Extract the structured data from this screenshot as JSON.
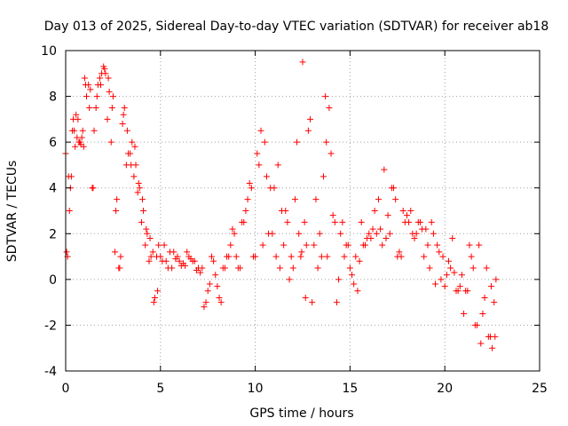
{
  "chart_data": {
    "type": "scatter",
    "title": "Day 013 of 2025, Sidereal Day-to-day VTEC variation (SDTVAR) for receiver ab18",
    "xlabel": "GPS time / hours",
    "ylabel": "SDTVAR / TECUs",
    "xlim": [
      0,
      25
    ],
    "ylim": [
      -4,
      10
    ],
    "xticks": [
      0,
      5,
      10,
      15,
      20,
      25
    ],
    "xtick_labels": [
      "0",
      "5",
      "10",
      "15",
      "20",
      "25"
    ],
    "yticks": [
      -4,
      -2,
      0,
      2,
      4,
      6,
      8,
      10
    ],
    "ytick_labels": [
      "-4",
      "-2",
      "0",
      "2",
      "4",
      "6",
      "8",
      "10"
    ],
    "grid": true,
    "marker": "plus",
    "color": "#ff0000",
    "series": [
      {
        "name": "SDTVAR",
        "x": [
          0.0,
          0.1,
          0.2,
          0.3,
          0.4,
          0.5,
          0.6,
          0.7,
          0.8,
          0.9,
          1.0,
          1.2,
          1.4,
          1.6,
          1.8,
          2.0,
          2.1,
          2.3,
          2.5,
          2.7,
          2.9,
          3.1,
          3.3,
          3.5,
          3.7,
          3.9,
          4.1,
          4.3,
          4.5,
          4.7,
          4.9,
          5.1,
          5.4,
          5.7,
          6.0,
          6.3,
          6.6,
          6.9,
          7.2,
          7.5,
          7.8,
          8.1,
          8.4,
          8.7,
          9.0,
          9.3,
          9.6,
          9.9,
          10.2,
          10.5,
          10.8,
          11.1,
          11.4,
          11.7,
          12.0,
          12.3,
          12.5,
          12.7,
          13.0,
          13.3,
          13.6,
          13.9,
          14.2,
          14.5,
          14.8,
          15.1,
          15.4,
          15.7,
          16.0,
          16.3,
          16.6,
          16.9,
          17.2,
          17.5,
          17.8,
          18.1,
          18.4,
          18.7,
          19.0,
          19.3,
          19.6,
          19.9,
          20.2,
          20.5,
          20.8,
          21.1,
          21.4,
          21.7,
          22.0,
          22.3,
          22.6,
          0.05,
          0.15,
          0.35,
          0.55,
          0.75,
          0.95,
          1.1,
          1.3,
          1.5,
          1.7,
          1.9,
          2.2,
          2.4,
          2.6,
          2.8,
          3.0,
          3.2,
          3.4,
          3.6,
          3.8,
          4.0,
          4.2,
          4.4,
          4.6,
          4.8,
          5.0,
          5.3,
          5.6,
          5.9,
          6.2,
          6.5,
          6.8,
          7.1,
          7.4,
          7.7,
          8.0,
          8.3,
          8.6,
          8.9,
          9.2,
          9.5,
          9.8,
          10.1,
          10.4,
          10.7,
          11.0,
          11.3,
          11.6,
          11.9,
          12.2,
          12.4,
          12.6,
          12.8,
          13.1,
          13.4,
          13.7,
          13.8,
          14.0,
          14.3,
          14.6,
          14.9,
          15.2,
          15.5,
          15.8,
          16.1,
          16.4,
          16.7,
          17.0,
          17.3,
          17.6,
          17.9,
          18.2,
          18.5,
          18.8,
          19.1,
          19.4,
          19.7,
          20.0,
          20.3,
          20.6,
          20.9,
          21.2,
          21.5,
          21.8,
          22.1,
          22.4,
          22.5,
          22.7,
          0.25,
          0.45,
          0.65,
          0.85,
          1.05,
          1.25,
          1.45,
          1.65,
          1.85,
          2.05,
          2.25,
          2.45,
          2.65,
          2.85,
          3.05,
          3.25,
          3.45,
          3.65,
          3.85,
          4.05,
          4.25,
          4.45,
          4.65,
          4.85,
          5.2,
          5.5,
          5.8,
          6.1,
          6.4,
          6.7,
          7.0,
          7.3,
          7.6,
          7.9,
          8.2,
          8.5,
          8.8,
          9.1,
          9.4,
          9.7,
          10.0,
          10.3,
          10.6,
          10.9,
          11.2,
          11.5,
          11.8,
          12.1,
          12.45,
          12.65,
          12.9,
          13.2,
          13.5,
          13.75,
          14.1,
          14.4,
          14.7,
          15.0,
          15.3,
          15.6,
          15.9,
          16.2,
          16.5,
          16.8,
          17.1,
          17.4,
          17.7,
          18.0,
          18.3,
          18.6,
          18.9,
          19.2,
          19.5,
          19.8,
          20.1,
          20.4,
          20.7,
          21.0,
          21.3,
          21.6,
          21.9,
          22.2,
          22.45,
          22.65
        ],
        "y": [
          5.5,
          1.0,
          3.0,
          4.5,
          7.0,
          5.8,
          6.2,
          6.0,
          5.9,
          6.5,
          8.8,
          8.5,
          4.0,
          7.5,
          8.8,
          9.3,
          9.0,
          8.2,
          8.0,
          3.5,
          1.0,
          7.5,
          5.5,
          6.0,
          5.0,
          4.0,
          3.0,
          2.0,
          1.0,
          -0.8,
          1.5,
          0.8,
          0.5,
          1.2,
          0.8,
          0.6,
          0.9,
          0.4,
          0.5,
          -0.5,
          0.8,
          -0.8,
          0.5,
          1.5,
          1.0,
          2.5,
          3.5,
          1.0,
          5.0,
          6.0,
          4.0,
          1.0,
          3.0,
          2.5,
          0.5,
          2.0,
          9.5,
          1.5,
          -1.0,
          0.5,
          4.5,
          7.5,
          2.5,
          2.0,
          1.5,
          0.2,
          -0.5,
          1.5,
          2.0,
          3.0,
          2.2,
          1.8,
          4.0,
          1.0,
          3.0,
          2.5,
          1.8,
          2.5,
          2.2,
          2.5,
          1.5,
          1.0,
          0.8,
          0.3,
          -0.3,
          -0.5,
          1.0,
          -2.0,
          -1.5,
          -2.5,
          -1.0,
          1.2,
          4.5,
          6.5,
          7.2,
          6.0,
          5.8,
          8.0,
          8.3,
          6.5,
          8.5,
          9.0,
          7.0,
          6.0,
          1.2,
          0.5,
          6.8,
          5.0,
          5.5,
          4.5,
          3.8,
          2.5,
          1.5,
          0.8,
          1.2,
          1.0,
          1.0,
          0.8,
          0.5,
          1.0,
          0.7,
          1.0,
          0.8,
          0.3,
          -1.0,
          1.0,
          -0.3,
          0.5,
          1.0,
          2.0,
          0.5,
          3.0,
          4.0,
          5.5,
          1.5,
          2.0,
          4.0,
          0.5,
          3.0,
          1.0,
          6.0,
          1.0,
          2.5,
          6.5,
          1.5,
          2.0,
          8.0,
          1.0,
          5.5,
          -1.0,
          2.5,
          1.5,
          -0.2,
          0.8,
          1.5,
          1.8,
          2.0,
          1.5,
          2.8,
          4.0,
          1.2,
          2.5,
          3.0,
          2.0,
          2.2,
          1.5,
          2.0,
          1.2,
          -0.3,
          0.5,
          -0.5,
          0.2,
          -0.5,
          0.5,
          1.5,
          -0.8,
          -2.5,
          -3.0,
          0.0,
          4.0,
          6.5,
          7.0,
          6.2,
          8.5,
          7.5,
          4.0,
          8.0,
          8.5,
          9.2,
          8.8,
          7.5,
          3.0,
          0.5,
          7.2,
          6.5,
          5.0,
          5.8,
          4.2,
          3.5,
          2.2,
          1.8,
          -1.0,
          -0.5,
          1.5,
          1.2,
          0.9,
          0.6,
          1.2,
          0.8,
          0.5,
          -1.2,
          -0.2,
          0.2,
          -1.0,
          1.0,
          2.2,
          0.5,
          2.5,
          4.2,
          1.0,
          6.5,
          4.5,
          2.0,
          5.0,
          1.5,
          0.0,
          3.5,
          1.2,
          -0.8,
          7.0,
          3.5,
          1.0,
          6.0,
          2.8,
          0.0,
          1.0,
          0.5,
          1.0,
          2.5,
          1.8,
          2.2,
          3.5,
          4.8,
          2.0,
          3.5,
          1.0,
          2.8,
          2.0,
          2.5,
          1.0,
          0.5,
          -0.2,
          0.0,
          0.2,
          1.8,
          -0.5,
          -1.5,
          1.5,
          -2.0,
          -2.8,
          0.5,
          -0.3,
          -2.5
        ]
      }
    ]
  }
}
